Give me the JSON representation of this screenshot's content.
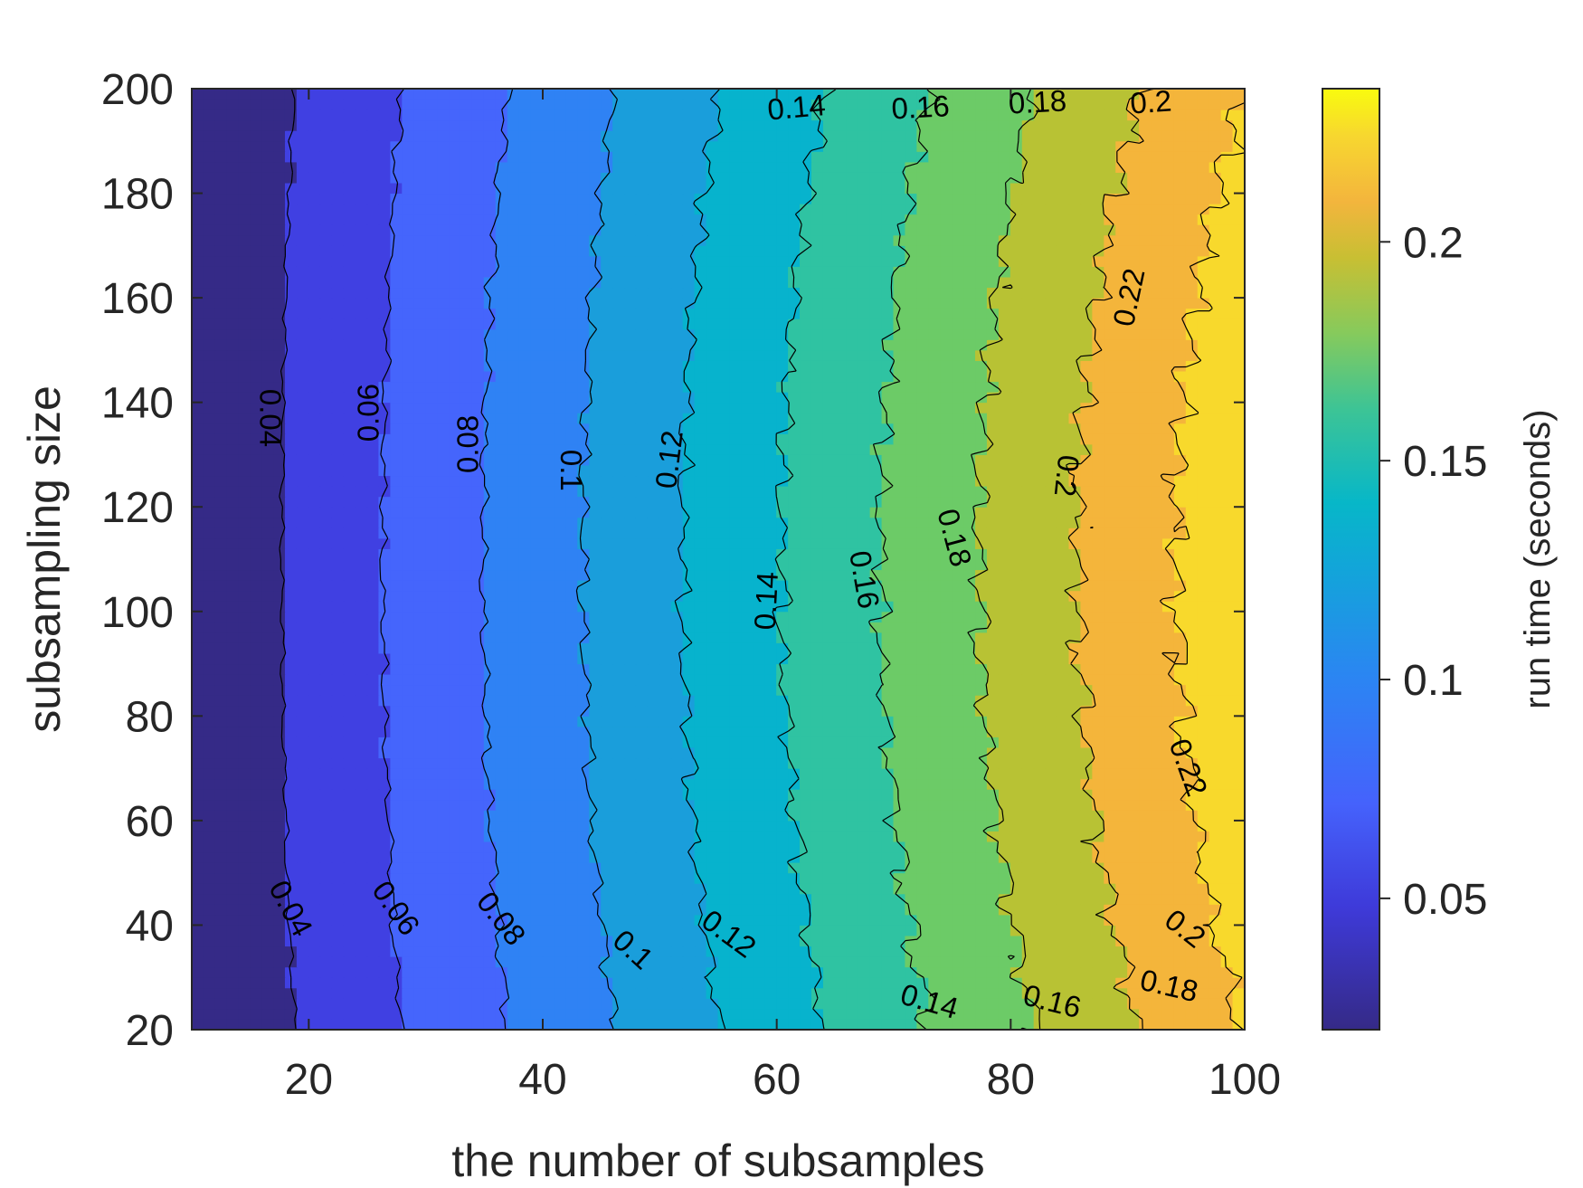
{
  "chart_data": {
    "type": "contourf",
    "xlabel": "the number of subsamples",
    "ylabel": "subsampling size",
    "colorbar_label": "run time (seconds)",
    "xlim": [
      10,
      100
    ],
    "ylim": [
      20,
      200
    ],
    "x_ticks": [
      "20",
      "40",
      "60",
      "80",
      "100"
    ],
    "y_ticks": [
      "20",
      "40",
      "60",
      "80",
      "100",
      "120",
      "140",
      "160",
      "180",
      "200"
    ],
    "colorbar_range": [
      0.02,
      0.235
    ],
    "colorbar_ticks": [
      "0.05",
      "0.1",
      "0.15",
      "0.2"
    ],
    "colormap": "parula",
    "levels": [
      0.02,
      0.04,
      0.06,
      0.08,
      0.1,
      0.12,
      0.14,
      0.16,
      0.18,
      0.2,
      0.22,
      0.24
    ],
    "level_colors": [
      "#352a87",
      "#4040e2",
      "#4565fc",
      "#2f82f4",
      "#1a9edb",
      "#07b3cd",
      "#2fc3a2",
      "#6ccb67",
      "#b8c234",
      "#f4b53b",
      "#f8d92c",
      "#f9fb0e"
    ],
    "contour_labels": [
      {
        "text": "0.04",
        "x": 16.5,
        "y": 137,
        "angle": 90
      },
      {
        "text": "0.04",
        "x": 18.3,
        "y": 43,
        "angle": 62
      },
      {
        "text": "0.06",
        "x": 25.3,
        "y": 138,
        "angle": -90
      },
      {
        "text": "0.06",
        "x": 27.3,
        "y": 43,
        "angle": 55
      },
      {
        "text": "0.08",
        "x": 33.8,
        "y": 132,
        "angle": -90
      },
      {
        "text": "0.08",
        "x": 36.3,
        "y": 41,
        "angle": 52
      },
      {
        "text": "0.1",
        "x": 42.2,
        "y": 127,
        "angle": 90
      },
      {
        "text": "0.1",
        "x": 47.6,
        "y": 35,
        "angle": 42
      },
      {
        "text": "0.12",
        "x": 51.0,
        "y": 129,
        "angle": -83
      },
      {
        "text": "0.12",
        "x": 55.8,
        "y": 38,
        "angle": 36
      },
      {
        "text": "0.14",
        "x": 59.3,
        "y": 102,
        "angle": -87
      },
      {
        "text": "0.14",
        "x": 73.0,
        "y": 25,
        "angle": 16
      },
      {
        "text": "0.14",
        "x": 61.7,
        "y": 196,
        "angle": -5
      },
      {
        "text": "0.16",
        "x": 67.3,
        "y": 106,
        "angle": 80
      },
      {
        "text": "0.16",
        "x": 83.5,
        "y": 25,
        "angle": 14
      },
      {
        "text": "0.16",
        "x": 72.3,
        "y": 196,
        "angle": -3
      },
      {
        "text": "0.18",
        "x": 75.0,
        "y": 114,
        "angle": 75
      },
      {
        "text": "0.18",
        "x": 93.5,
        "y": 28,
        "angle": 13
      },
      {
        "text": "0.18",
        "x": 82.3,
        "y": 197,
        "angle": -3
      },
      {
        "text": "0.2",
        "x": 84.6,
        "y": 126,
        "angle": 96
      },
      {
        "text": "0.2",
        "x": 94.8,
        "y": 39,
        "angle": 38
      },
      {
        "text": "0.2",
        "x": 92.0,
        "y": 197,
        "angle": -4
      },
      {
        "text": "0.22",
        "x": 90.3,
        "y": 160,
        "angle": -78
      },
      {
        "text": "0.22",
        "x": 95.0,
        "y": 70,
        "angle": 70
      }
    ]
  }
}
